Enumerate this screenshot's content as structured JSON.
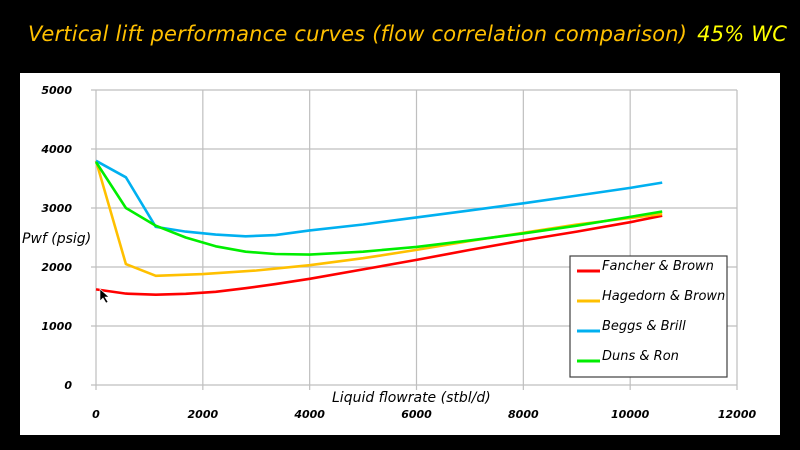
{
  "chart_data": {
    "type": "line",
    "title": "Vertical lift performance curves  (flow correlation comparison)",
    "subtitle": "45% WC",
    "xlabel": "Liquid flowrate (stbl/d)",
    "ylabel": "Pwf (psig)",
    "xlim": [
      0,
      12000
    ],
    "ylim": [
      0,
      5000
    ],
    "xticks": [
      0,
      2000,
      4000,
      6000,
      8000,
      10000,
      12000
    ],
    "yticks": [
      0,
      1000,
      2000,
      3000,
      4000,
      5000
    ],
    "grid": true,
    "legend_position": "bottom-right",
    "series": [
      {
        "name": "Fancher & Brown",
        "color": "#ff0000",
        "x": [
          0,
          560,
          1120,
          1680,
          2240,
          2800,
          3360,
          4000,
          5000,
          6000,
          7000,
          8000,
          9000,
          10000,
          10600
        ],
        "y": [
          1620,
          1550,
          1530,
          1545,
          1580,
          1640,
          1710,
          1800,
          1960,
          2120,
          2290,
          2450,
          2600,
          2760,
          2870
        ]
      },
      {
        "name": "Hagedorn & Brown",
        "color": "#ffc000",
        "x": [
          0,
          560,
          1120,
          2000,
          3000,
          4000,
          5000,
          6000,
          7000,
          8000,
          9000,
          10000,
          10600
        ],
        "y": [
          3800,
          2050,
          1850,
          1880,
          1940,
          2030,
          2150,
          2290,
          2440,
          2580,
          2720,
          2830,
          2900
        ]
      },
      {
        "name": "Beggs & Brill",
        "color": "#00b0f0",
        "x": [
          0,
          560,
          1120,
          1680,
          2240,
          2800,
          3360,
          4000,
          5000,
          6000,
          7000,
          8000,
          9000,
          10000,
          10600
        ],
        "y": [
          3800,
          3520,
          2680,
          2600,
          2550,
          2520,
          2540,
          2620,
          2720,
          2840,
          2960,
          3080,
          3210,
          3340,
          3430
        ]
      },
      {
        "name": "Duns & Ron",
        "color": "#00ee00",
        "x": [
          0,
          560,
          1120,
          1680,
          2240,
          2800,
          3360,
          4000,
          5000,
          6000,
          7000,
          8000,
          9000,
          10000,
          10600
        ],
        "y": [
          3780,
          3000,
          2700,
          2500,
          2350,
          2260,
          2220,
          2210,
          2260,
          2340,
          2450,
          2570,
          2700,
          2850,
          2940
        ]
      }
    ]
  }
}
